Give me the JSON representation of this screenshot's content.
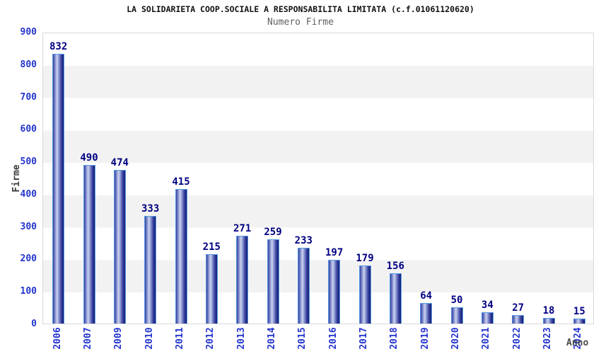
{
  "header": {
    "title": "LA SOLIDARIETA COOP.SOCIALE A RESPONSABILITA LIMITATA (c.f.01061120620)",
    "subtitle": "Numero Firme"
  },
  "chart_data": {
    "type": "bar",
    "title": "Numero Firme",
    "categories": [
      "2006",
      "2007",
      "2009",
      "2010",
      "2011",
      "2012",
      "2013",
      "2014",
      "2015",
      "2016",
      "2017",
      "2018",
      "2019",
      "2020",
      "2021",
      "2022",
      "2023",
      "2024"
    ],
    "values": [
      832,
      490,
      474,
      333,
      415,
      215,
      271,
      259,
      233,
      197,
      179,
      156,
      64,
      50,
      34,
      27,
      18,
      15
    ],
    "xlabel": "Anno",
    "ylabel": "Firme",
    "ylim": [
      0,
      900
    ],
    "yticks": [
      0,
      100,
      200,
      300,
      400,
      500,
      600,
      700,
      800,
      900
    ],
    "grid": "horizontal-bands-alternating",
    "legend": "none",
    "value_labels": "above-bars",
    "x_tick_rotation": -90,
    "colors": {
      "bar_edge": "#539ae2",
      "bar_gradient_dark": "#141c74",
      "bar_gradient_mid": "#39419e",
      "bar_gradient_light": "#cdd4ee",
      "tick_label": "#2535cd",
      "value_label": "#000082",
      "band_gray": "#f2f2f2",
      "band_white": "#ffffff",
      "plot_border": "#d8d8d8",
      "title_color": "#111111",
      "subtitle_color": "#606060",
      "axis_title_color": "#3a3a3a"
    }
  }
}
